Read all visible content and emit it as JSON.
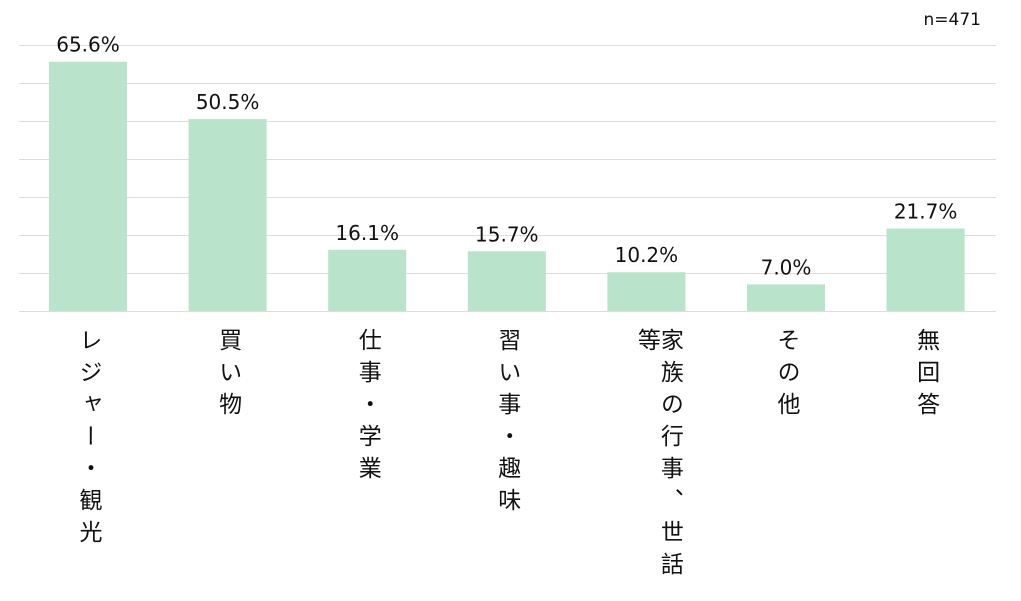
{
  "chart_data": {
    "type": "bar",
    "title": "",
    "xlabel": "",
    "ylabel": "",
    "annotation": "n=471",
    "categories": [
      "レジャー・観光",
      "買い物",
      "仕事・学業",
      "習い事・趣味",
      "家族の行事、世話等",
      "その他",
      "無回答"
    ],
    "values": [
      65.6,
      50.5,
      16.1,
      15.7,
      10.2,
      7.0,
      21.7
    ],
    "value_labels": [
      "65.6%",
      "50.5%",
      "16.1%",
      "15.7%",
      "10.2%",
      "7.0%",
      "21.7%"
    ],
    "ylim": [
      0,
      70
    ],
    "ytick_step": 10,
    "grid": true,
    "bar_color": "#b9e3cb",
    "grid_color": "#dddddd"
  }
}
